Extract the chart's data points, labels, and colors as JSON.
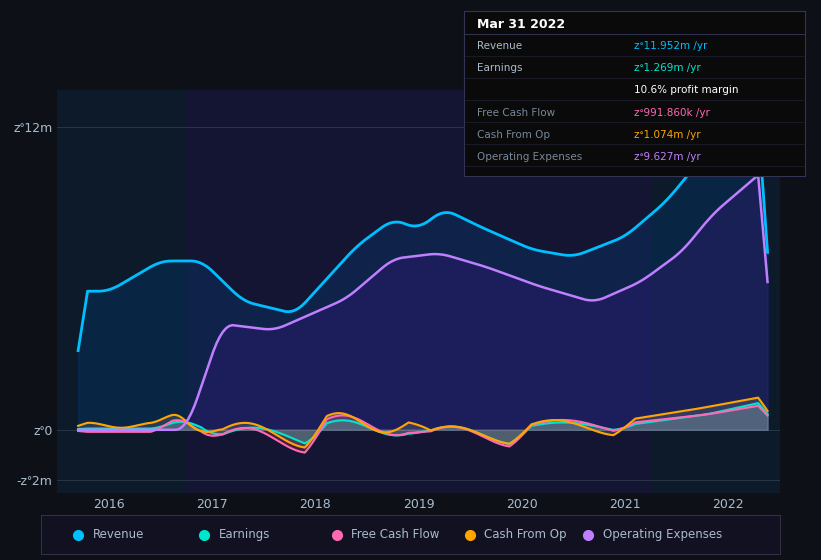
{
  "bg_color": "#0d1117",
  "plot_bg_color": "#0d1a2a",
  "title": "Mar 31 2022",
  "ylabel_12m": "zᐤ12m",
  "ylabel_0": "zᐤ0",
  "ylabel_neg2m": "-zᐤ2m",
  "ylim": [
    -2500000,
    13500000
  ],
  "xlim_start": 2015.5,
  "xlim_end": 2022.5,
  "xticks": [
    2016,
    2017,
    2018,
    2019,
    2020,
    2021,
    2022
  ],
  "legend": [
    {
      "label": "Revenue",
      "color": "#00bfff"
    },
    {
      "label": "Earnings",
      "color": "#00e5cc"
    },
    {
      "label": "Free Cash Flow",
      "color": "#ff69b4"
    },
    {
      "label": "Cash From Op",
      "color": "#ffa500"
    },
    {
      "label": "Operating Expenses",
      "color": "#bf7fff"
    }
  ],
  "shaded_region_start": 2016.75,
  "shaded_region_end": 2021.25,
  "revenue_color": "#00bfff",
  "earnings_color": "#00e5cc",
  "fcf_color": "#ff69b4",
  "cashfromop_color": "#ffa500",
  "opex_color": "#bf7fff",
  "tooltip_title": "Mar 31 2022",
  "tooltip_rows": [
    {
      "label": "Revenue",
      "value": "zᐤ11.952m /yr",
      "color": "#00bfff",
      "dim_label": false
    },
    {
      "label": "Earnings",
      "value": "zᐤ1.269m /yr",
      "color": "#00e5cc",
      "dim_label": false
    },
    {
      "label": "",
      "value": "10.6% profit margin",
      "color": "#ffffff",
      "dim_label": false
    },
    {
      "label": "Free Cash Flow",
      "value": "zᐤ991.860k /yr",
      "color": "#ff69b4",
      "dim_label": true
    },
    {
      "label": "Cash From Op",
      "value": "zᐤ1.074m /yr",
      "color": "#ffa500",
      "dim_label": true
    },
    {
      "label": "Operating Expenses",
      "value": "zᐤ9.627m /yr",
      "color": "#bf7fff",
      "dim_label": true
    }
  ]
}
